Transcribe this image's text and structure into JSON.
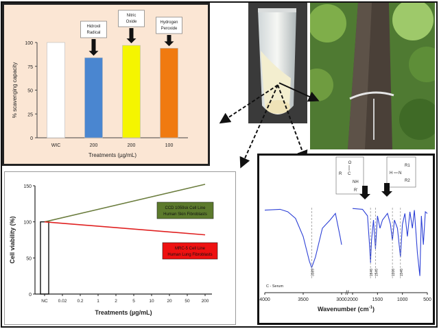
{
  "bar_chart": {
    "ylabel": "% scavenging capacity",
    "xlabel": "Treatments (µg/mL)",
    "annotations": [
      "Hidroxil Radical",
      "Nitric Oxide",
      "Hydrogen Peroxide"
    ],
    "colors": [
      "#ffffff",
      "#4a86d0",
      "#f5f500",
      "#f07a10"
    ]
  },
  "line_chart": {
    "ylabel": "Cell viability (%)",
    "xlabel": "Treatments (µg/mL)",
    "legend_green": [
      "CCD 1059sk Cell Line",
      "Human Skin Fibroblasts"
    ],
    "legend_red": [
      "MRC-5 Cell Line",
      "Human Lung Fibroblasts"
    ]
  },
  "ftir_chart": {
    "xlabel": "Wavenumber (cm",
    "xlabel_sup": "-1",
    "xlabel_end": ")",
    "sample_label": "C - Serum",
    "break_mark": "//",
    "peak_labels": [
      "3389",
      "1640",
      "1540",
      "1200",
      "1040"
    ],
    "struct_left": [
      "O",
      "R",
      "C",
      "NH",
      "R'"
    ],
    "struct_right": [
      "H",
      "N",
      "R1",
      "R2"
    ]
  },
  "chart_data": [
    {
      "type": "bar",
      "categories": [
        "WIC",
        "200",
        "200",
        "100"
      ],
      "values": [
        100,
        84,
        97,
        94
      ],
      "ylim": [
        0,
        100
      ],
      "yticks": [
        0,
        25,
        50,
        75,
        100
      ],
      "xlabel": "Treatments (µg/mL)",
      "ylabel": "% scavenging capacity"
    },
    {
      "type": "line",
      "categories": [
        "NC",
        "0.02",
        "0.2",
        "1",
        "2",
        "5",
        "10",
        "20",
        "50",
        "200"
      ],
      "ylim": [
        0,
        150
      ],
      "yticks": [
        0,
        50,
        100,
        150
      ],
      "series": [
        {
          "name": "CCD 1059sk Cell Line Human Skin Fibroblasts",
          "x_start": "NC",
          "x_end": "200",
          "y_start": 100,
          "y_end": 152
        },
        {
          "name": "MRC-5 Cell Line Human Lung Fibroblasts",
          "x_start": "NC",
          "x_end": "200",
          "y_start": 100,
          "y_end": 82
        }
      ],
      "xlabel": "Treatments (µg/mL)",
      "ylabel": "Cell viability (%)"
    },
    {
      "type": "line",
      "xticks": [
        4000,
        3500,
        3000,
        2000,
        1500,
        1000,
        500
      ],
      "xlim": [
        4000,
        500
      ],
      "xlabel": "Wavenumber (cm-1)"
    }
  ]
}
